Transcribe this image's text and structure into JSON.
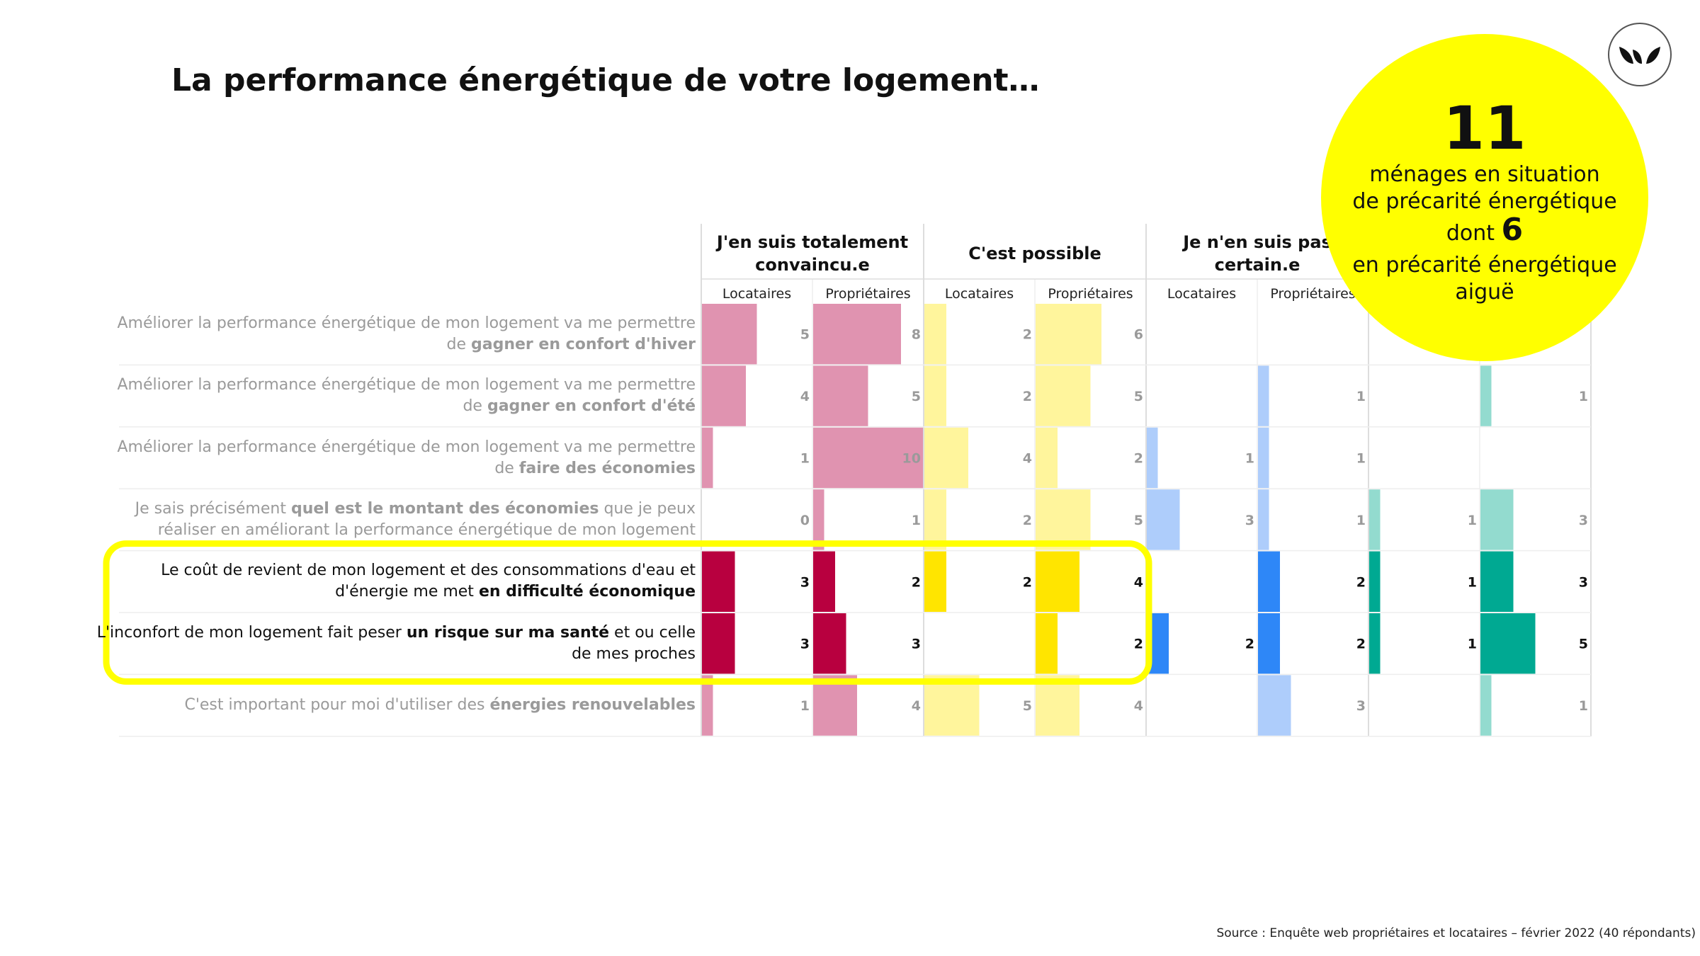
{
  "title": "La performance énergétique de votre logement…",
  "callout": {
    "big": "11",
    "line1a": "ménages en situation",
    "line1b": "de précarité énergétique",
    "dont": "dont",
    "big2": "6",
    "line3a": "en précarité énergétique",
    "line3b": "aiguë"
  },
  "logo_icon": "leaf-logo-icon",
  "source": "Source : Enquête web propriétaires et locataires – février 2022 (40 répondants)",
  "colors": {
    "pink_light": "#e093b0",
    "pink_dark": "#b8003f",
    "yellow_light": "#fff59c",
    "yellow_dark": "#ffe500",
    "blue_light": "#aecdfb",
    "blue_dark": "#2e87f7",
    "teal_light": "#93dbcf",
    "teal_dark": "#00a992",
    "highlight": "#ffff00"
  },
  "chart_data": {
    "type": "bar",
    "group_labels": [
      [
        "J'en suis totalement",
        "convaincu.e"
      ],
      [
        "C'est possible"
      ],
      [
        "Je n'en suis pas",
        "certain.e"
      ],
      [
        ""
      ]
    ],
    "subgroup_labels": [
      "Locataires",
      "Propriétaires",
      "Locataires",
      "Propriétaires",
      "Locataires",
      "Propriétaires",
      "",
      ""
    ],
    "rows": [
      {
        "label": [
          [
            "Améliorer la performance énergétique de mon logement va me permettre",
            false
          ]
        ],
        "label2": [
          [
            "de ",
            false
          ],
          [
            "gagner en confort d'hiver",
            true
          ]
        ],
        "highlight": false,
        "values": [
          5,
          8,
          2,
          6,
          null,
          null,
          null,
          null
        ]
      },
      {
        "label": [
          [
            "Améliorer la performance énergétique de mon logement va me permettre",
            false
          ]
        ],
        "label2": [
          [
            "de ",
            false
          ],
          [
            "gagner en confort d'été",
            true
          ]
        ],
        "highlight": false,
        "values": [
          4,
          5,
          2,
          5,
          null,
          1,
          null,
          1
        ]
      },
      {
        "label": [
          [
            "Améliorer la performance énergétique de mon logement va me permettre",
            false
          ]
        ],
        "label2": [
          [
            "de ",
            false
          ],
          [
            "faire des économies",
            true
          ]
        ],
        "highlight": false,
        "values": [
          1,
          10,
          4,
          2,
          1,
          1,
          null,
          null
        ]
      },
      {
        "label": [
          [
            "Je sais précisément ",
            false
          ],
          [
            "quel est le montant des économies",
            true
          ],
          [
            " que je peux",
            false
          ]
        ],
        "label2": [
          [
            "réaliser en améliorant la performance énergétique de mon logement",
            false
          ]
        ],
        "highlight": false,
        "values": [
          0,
          1,
          2,
          5,
          3,
          1,
          1,
          3
        ]
      },
      {
        "label": [
          [
            "Le coût de revient de mon logement et des consommations d'eau et",
            false
          ]
        ],
        "label2": [
          [
            "d'énergie me met ",
            false
          ],
          [
            "en difficulté économique",
            true
          ]
        ],
        "highlight": true,
        "values": [
          3,
          2,
          2,
          4,
          null,
          2,
          1,
          3
        ]
      },
      {
        "label": [
          [
            "L'inconfort de mon logement fait peser ",
            false
          ],
          [
            "un risque sur ma santé",
            true
          ],
          [
            " et ou celle",
            false
          ]
        ],
        "label2": [
          [
            "de mes proches",
            false
          ]
        ],
        "highlight": true,
        "values": [
          3,
          3,
          null,
          2,
          2,
          2,
          1,
          5
        ]
      },
      {
        "label": [
          [
            "C'est important pour moi d'utiliser des ",
            false
          ],
          [
            "énergies renouvelables",
            true
          ]
        ],
        "label2": [],
        "highlight": false,
        "values": [
          1,
          4,
          5,
          4,
          null,
          3,
          null,
          1
        ]
      }
    ],
    "cell_max": 10
  }
}
